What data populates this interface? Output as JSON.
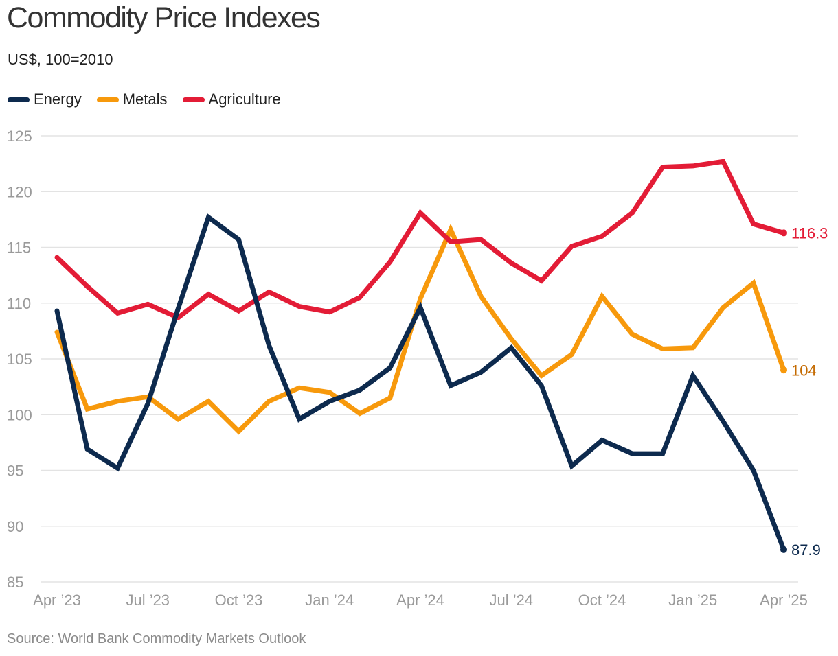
{
  "chart_data": {
    "type": "line",
    "title": "Commodity Price Indexes",
    "subtitle": "US$, 100=2010",
    "source": "Source: World Bank Commodity Markets Outlook",
    "ylim": [
      85,
      125
    ],
    "yticks": [
      "125",
      "120",
      "115",
      "110",
      "105",
      "100",
      "95",
      "90",
      "85"
    ],
    "xtick_labels": [
      "Apr ’23",
      "Jul ’23",
      "Oct ’23",
      "Jan ’24",
      "Apr ’24",
      "Jul ’24",
      "Oct ’24",
      "Jan ’25",
      "Apr ’25"
    ],
    "x": [
      "Apr 2023",
      "May 2023",
      "Jun 2023",
      "Jul 2023",
      "Aug 2023",
      "Sep 2023",
      "Oct 2023",
      "Nov 2023",
      "Dec 2023",
      "Jan 2024",
      "Feb 2024",
      "Mar 2024",
      "Apr 2024",
      "May 2024",
      "Jun 2024",
      "Jul 2024",
      "Aug 2024",
      "Sep 2024",
      "Oct 2024",
      "Nov 2024",
      "Dec 2024",
      "Jan 2025",
      "Feb 2025",
      "Mar 2025",
      "Apr 2025"
    ],
    "series": [
      {
        "name": "Energy",
        "color": "#0d2a4e",
        "end_label": "87.9",
        "values": [
          109.3,
          96.9,
          95.2,
          101.0,
          109.5,
          117.7,
          115.7,
          106.2,
          99.6,
          101.2,
          102.2,
          104.2,
          109.6,
          102.6,
          103.8,
          106.0,
          102.6,
          95.4,
          97.7,
          96.5,
          96.5,
          103.5,
          99.4,
          95.0,
          87.9
        ]
      },
      {
        "name": "Metals",
        "color": "#f7990c",
        "end_label": "104",
        "values": [
          107.4,
          100.5,
          101.2,
          101.6,
          99.6,
          101.2,
          98.5,
          101.2,
          102.4,
          102.0,
          100.1,
          101.5,
          110.4,
          116.6,
          110.6,
          106.8,
          103.5,
          105.4,
          110.6,
          107.2,
          105.9,
          106.0,
          109.6,
          111.8,
          104.0
        ]
      },
      {
        "name": "Agriculture",
        "color": "#e31c36",
        "end_label": "116.3",
        "values": [
          114.1,
          111.5,
          109.1,
          109.9,
          108.7,
          110.8,
          109.3,
          111.0,
          109.7,
          109.2,
          110.5,
          113.7,
          118.1,
          115.5,
          115.7,
          113.6,
          112.0,
          115.1,
          116.0,
          118.1,
          122.2,
          122.3,
          122.7,
          117.1,
          116.3
        ]
      }
    ],
    "end_label_colors": [
      "#0d2a4e",
      "#c46a00",
      "#e31c36"
    ]
  }
}
